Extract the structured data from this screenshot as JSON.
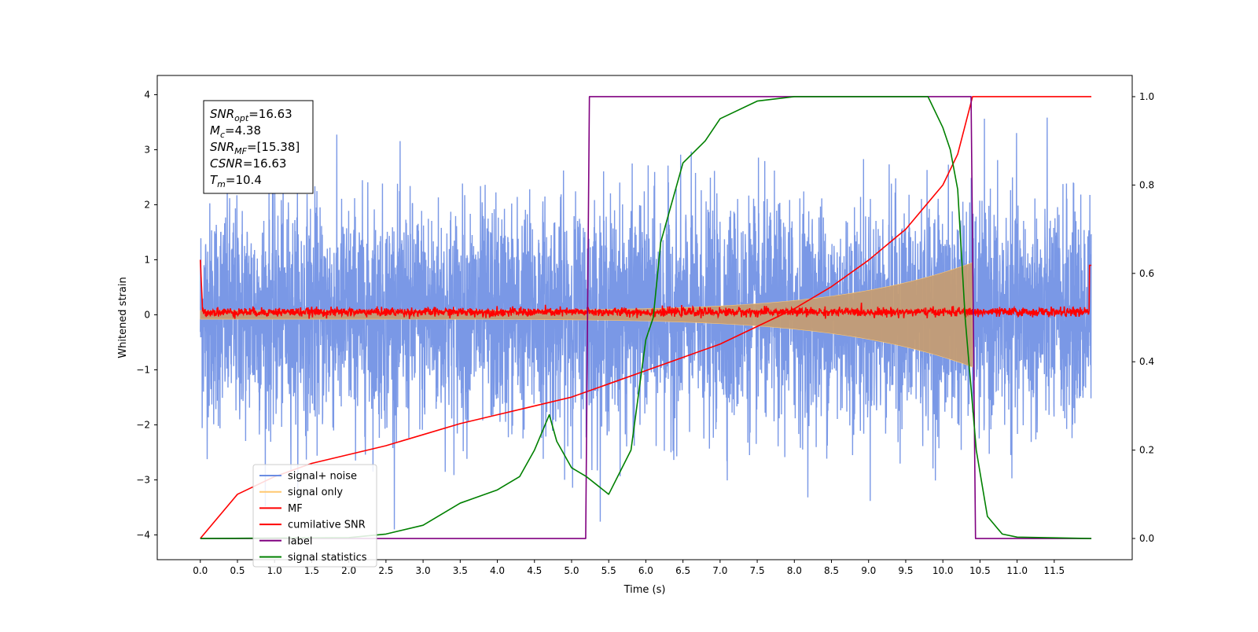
{
  "chart_data": {
    "type": "line",
    "xlabel": "Time (s)",
    "ylabel": "Whitened strain",
    "xlim": [
      -0.58,
      12.55
    ],
    "ylim": [
      -4.45,
      4.35
    ],
    "y2lim": [
      -0.048,
      1.048
    ],
    "x_ticks": [
      "0.0",
      "0.5",
      "1.0",
      "1.5",
      "2.0",
      "2.5",
      "3.0",
      "3.5",
      "4.0",
      "4.5",
      "5.0",
      "5.5",
      "6.0",
      "6.5",
      "7.0",
      "7.5",
      "8.0",
      "8.5",
      "9.0",
      "9.5",
      "10.0",
      "10.5",
      "11.0",
      "11.5"
    ],
    "y_ticks": [
      "4",
      "3",
      "2",
      "1",
      "0",
      "−1",
      "−2",
      "−3",
      "−4"
    ],
    "y2_ticks": [
      "1.0",
      "0.8",
      "0.6",
      "0.4",
      "0.2",
      "0.0"
    ],
    "grid": false,
    "legend_position": "lower-left",
    "annotation": [
      {
        "base": "SNR",
        "sub": "opt",
        "value": "=16.63"
      },
      {
        "base": "M",
        "sub": "c",
        "value": "=4.38"
      },
      {
        "base": "SNR",
        "sub": "MF",
        "value": "=[15.38]"
      },
      {
        "base": "CSNR",
        "sub": "",
        "value": "=16.63"
      },
      {
        "base": "T",
        "sub": "m",
        "value": "=10.4"
      }
    ],
    "series": [
      {
        "name": "signal+ noise",
        "color": "#6b8de3",
        "axis": "left",
        "description_values": {
          "amplitude_std": 1.0,
          "t_range": [
            0.0,
            12.0
          ]
        }
      },
      {
        "name": "signal only",
        "color": "#ffc870",
        "axis": "left",
        "description_values": {
          "t_range": [
            0.0,
            10.4
          ],
          "envelope_start": 0.08,
          "envelope_peak": 0.95
        }
      },
      {
        "name": "MF",
        "color": "#ff0000",
        "axis": "left",
        "description_values": {
          "level": 0.05,
          "noise": 0.04
        }
      },
      {
        "name": "cumilative SNR",
        "color": "#ff0000",
        "axis": "right",
        "x": [
          0.0,
          0.5,
          1.0,
          1.5,
          2.0,
          2.5,
          3.0,
          3.5,
          4.0,
          4.5,
          5.0,
          5.5,
          6.0,
          6.5,
          7.0,
          7.5,
          8.0,
          8.5,
          9.0,
          9.5,
          10.0,
          10.2,
          10.4,
          10.41,
          12.0
        ],
        "values": [
          0.0,
          0.1,
          0.14,
          0.17,
          0.19,
          0.21,
          0.235,
          0.26,
          0.28,
          0.3,
          0.32,
          0.35,
          0.38,
          0.41,
          0.44,
          0.48,
          0.52,
          0.57,
          0.63,
          0.7,
          0.8,
          0.87,
          1.0,
          1.0,
          1.0
        ]
      },
      {
        "name": "label",
        "color": "#800080",
        "axis": "right",
        "x": [
          0.0,
          5.19,
          5.24,
          10.38,
          10.44,
          12.0
        ],
        "values": [
          0.0,
          0.0,
          1.0,
          1.0,
          0.0,
          0.0
        ]
      },
      {
        "name": "signal statistics",
        "color": "#008000",
        "axis": "right",
        "x": [
          0.0,
          2.0,
          2.5,
          3.0,
          3.5,
          4.0,
          4.3,
          4.5,
          4.7,
          4.8,
          5.0,
          5.2,
          5.5,
          5.8,
          6.0,
          6.1,
          6.2,
          6.5,
          6.8,
          7.0,
          7.5,
          8.0,
          9.0,
          9.8,
          10.0,
          10.1,
          10.2,
          10.3,
          10.45,
          10.6,
          10.8,
          11.0,
          12.0
        ],
        "values": [
          0.0,
          0.002,
          0.01,
          0.03,
          0.08,
          0.11,
          0.14,
          0.2,
          0.28,
          0.22,
          0.16,
          0.14,
          0.1,
          0.2,
          0.45,
          0.5,
          0.67,
          0.85,
          0.9,
          0.95,
          0.99,
          1.0,
          1.0,
          1.0,
          0.93,
          0.88,
          0.79,
          0.5,
          0.2,
          0.05,
          0.01,
          0.003,
          0.0
        ]
      }
    ]
  }
}
